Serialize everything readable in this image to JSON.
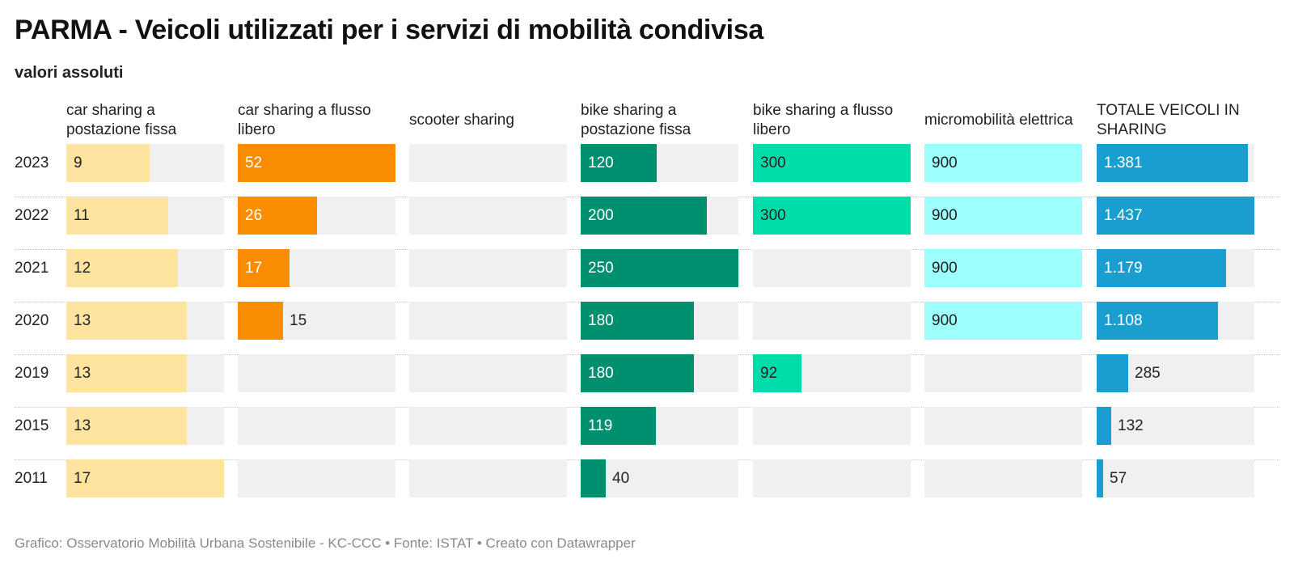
{
  "header": {
    "title": "PARMA - Veicoli utilizzati per i servizi di mobilità condivisa",
    "subtitle": "valori assoluti"
  },
  "footer": {
    "text": "Grafico: Osservatorio Mobilità Urbana Sostenibile - KC-CCC • Fonte: ISTAT • Creato con Datawrapper"
  },
  "chart_data": {
    "type": "bar",
    "layout": "small multiples (one column per series, horizontal bars)",
    "title": "PARMA - Veicoli utilizzati per i servizi di mobilità condivisa",
    "subtitle": "valori assoluti",
    "categories": [
      "2023",
      "2022",
      "2021",
      "2020",
      "2019",
      "2015",
      "2011"
    ],
    "series": [
      {
        "name": "car sharing a postazione fissa",
        "color": "#fee49f",
        "values": [
          9,
          11,
          12,
          13,
          13,
          13,
          17
        ],
        "labels": [
          "9",
          "11",
          "12",
          "13",
          "13",
          "13",
          "17"
        ]
      },
      {
        "name": "car sharing a flusso libero",
        "color": "#f98c00",
        "values": [
          52,
          26,
          17,
          15,
          null,
          null,
          null
        ],
        "labels": [
          "52",
          "26",
          "17",
          "15",
          "",
          "",
          ""
        ]
      },
      {
        "name": "scooter sharing",
        "color": "#bdbdbd",
        "values": [
          null,
          null,
          null,
          null,
          null,
          null,
          null
        ],
        "labels": [
          "",
          "",
          "",
          "",
          "",
          "",
          ""
        ]
      },
      {
        "name": "bike sharing a postazione fissa",
        "color": "#008f6f",
        "values": [
          120,
          200,
          250,
          180,
          180,
          119,
          40
        ],
        "labels": [
          "120",
          "200",
          "250",
          "180",
          "180",
          "119",
          "40"
        ]
      },
      {
        "name": "bike sharing a flusso libero",
        "color": "#00dcaa",
        "values": [
          300,
          300,
          null,
          null,
          92,
          null,
          null
        ],
        "labels": [
          "300",
          "300",
          "",
          "",
          "92",
          "",
          ""
        ]
      },
      {
        "name": "micromobilità elettrica",
        "color": "#9cfffc",
        "values": [
          900,
          900,
          900,
          900,
          null,
          null,
          null
        ],
        "labels": [
          "900",
          "900",
          "900",
          "900",
          "",
          "",
          ""
        ]
      },
      {
        "name": "TOTALE VEICOLI IN SHARING",
        "color": "#1a9ecf",
        "values": [
          1381,
          1437,
          1179,
          1108,
          285,
          132,
          57
        ],
        "labels": [
          "1.381",
          "1.437",
          "1.179",
          "1.108",
          "285",
          "132",
          "57"
        ]
      }
    ]
  }
}
